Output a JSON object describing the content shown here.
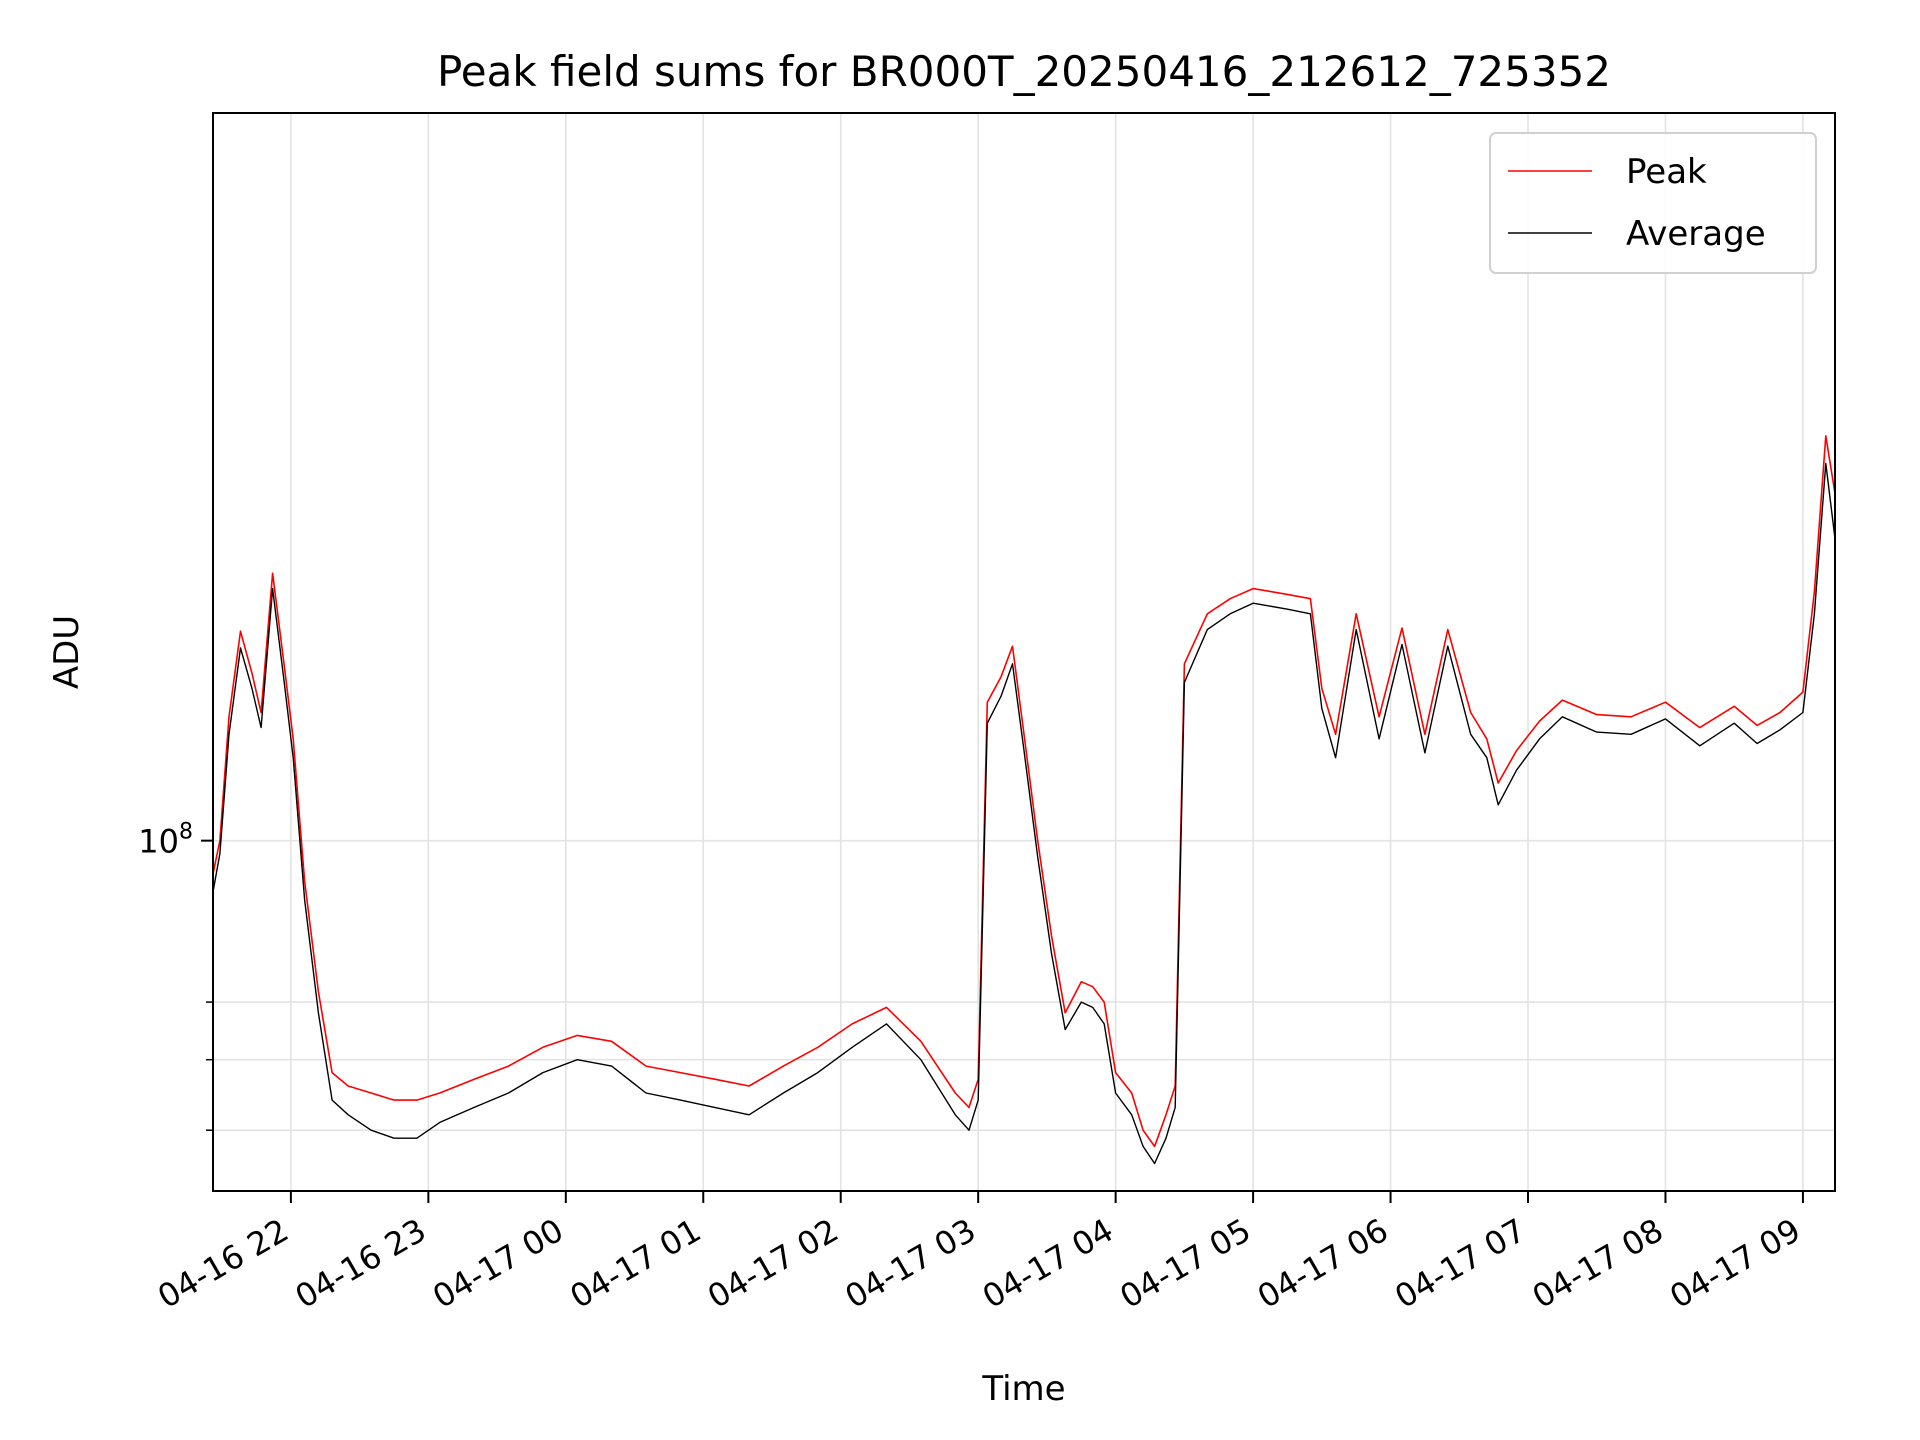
{
  "chart_data": {
    "type": "line",
    "title": "Peak field sums for BR000T_20250416_212612_725352",
    "xlabel": "Time",
    "ylabel": "ADU",
    "y_scale": "log",
    "ylim": [
      33000000,
      1000000000
    ],
    "xlim": [
      "04-16 21:26",
      "04-17 09:14"
    ],
    "x_ticks": [
      "04-16 22",
      "04-16 23",
      "04-17 00",
      "04-17 01",
      "04-17 02",
      "04-17 03",
      "04-17 04",
      "04-17 05",
      "04-17 06",
      "04-17 07",
      "04-17 08",
      "04-17 09"
    ],
    "y_major_tick": {
      "value": 100000000,
      "base": "10",
      "exp": "8"
    },
    "y_minor_ticks": [
      40000000,
      50000000,
      60000000
    ],
    "grid": true,
    "legend_position": "upper right",
    "series": [
      {
        "name": "Peak",
        "color": "#ff0000",
        "x": [
          "04-16 21:26",
          "04-16 21:29",
          "04-16 21:33",
          "04-16 21:38",
          "04-16 21:43",
          "04-16 21:47",
          "04-16 21:52",
          "04-16 21:57",
          "04-16 22:01",
          "04-16 22:06",
          "04-16 22:12",
          "04-16 22:18",
          "04-16 22:25",
          "04-16 22:35",
          "04-16 22:45",
          "04-16 22:55",
          "04-16 23:05",
          "04-16 23:20",
          "04-16 23:35",
          "04-16 23:50",
          "04-17 00:05",
          "04-17 00:20",
          "04-17 00:35",
          "04-17 00:50",
          "04-17 01:05",
          "04-17 01:20",
          "04-17 01:35",
          "04-17 01:50",
          "04-17 02:05",
          "04-17 02:20",
          "04-17 02:35",
          "04-17 02:50",
          "04-17 02:56",
          "04-17 03:00",
          "04-17 03:04",
          "04-17 03:10",
          "04-17 03:15",
          "04-17 03:20",
          "04-17 03:26",
          "04-17 03:32",
          "04-17 03:38",
          "04-17 03:45",
          "04-17 03:50",
          "04-17 03:55",
          "04-17 04:00",
          "04-17 04:07",
          "04-17 04:12",
          "04-17 04:17",
          "04-17 04:22",
          "04-17 04:26",
          "04-17 04:30",
          "04-17 04:40",
          "04-17 04:50",
          "04-17 05:00",
          "04-17 05:15",
          "04-17 05:25",
          "04-17 05:30",
          "04-17 05:36",
          "04-17 05:45",
          "04-17 05:55",
          "04-17 06:05",
          "04-17 06:15",
          "04-17 06:25",
          "04-17 06:35",
          "04-17 06:42",
          "04-17 06:47",
          "04-17 06:55",
          "04-17 07:05",
          "04-17 07:15",
          "04-17 07:30",
          "04-17 07:45",
          "04-17 08:00",
          "04-17 08:15",
          "04-17 08:30",
          "04-17 08:40",
          "04-17 08:50",
          "04-17 09:00",
          "04-17 09:05",
          "04-17 09:10",
          "04-17 09:14"
        ],
        "values": [
          90000000,
          100000000,
          148000000,
          194000000,
          170000000,
          150000000,
          233000000,
          175000000,
          138000000,
          88000000,
          62000000,
          48000000,
          46000000,
          45000000,
          44000000,
          44000000,
          45000000,
          47000000,
          49000000,
          52000000,
          54000000,
          53000000,
          49000000,
          48000000,
          47000000,
          46000000,
          49000000,
          52000000,
          56000000,
          59000000,
          53000000,
          45000000,
          43000000,
          47000000,
          155000000,
          168000000,
          185000000,
          140000000,
          100000000,
          74000000,
          58000000,
          64000000,
          63000000,
          60000000,
          48000000,
          45000000,
          40000000,
          38000000,
          42000000,
          46000000,
          175000000,
          205000000,
          215000000,
          222000000,
          218000000,
          215000000,
          162000000,
          140000000,
          205000000,
          148000000,
          196000000,
          140000000,
          195000000,
          150000000,
          138000000,
          120000000,
          133000000,
          146000000,
          156000000,
          149000000,
          148000000,
          155000000,
          143000000,
          153000000,
          144000000,
          150000000,
          160000000,
          220000000,
          360000000,
          300000000
        ]
      },
      {
        "name": "Average",
        "color": "#000000",
        "x": [
          "04-16 21:26",
          "04-16 21:29",
          "04-16 21:33",
          "04-16 21:38",
          "04-16 21:43",
          "04-16 21:47",
          "04-16 21:52",
          "04-16 21:57",
          "04-16 22:01",
          "04-16 22:06",
          "04-16 22:12",
          "04-16 22:18",
          "04-16 22:25",
          "04-16 22:35",
          "04-16 22:45",
          "04-16 22:55",
          "04-16 23:05",
          "04-16 23:20",
          "04-16 23:35",
          "04-16 23:50",
          "04-17 00:05",
          "04-17 00:20",
          "04-17 00:35",
          "04-17 00:50",
          "04-17 01:05",
          "04-17 01:20",
          "04-17 01:35",
          "04-17 01:50",
          "04-17 02:05",
          "04-17 02:20",
          "04-17 02:35",
          "04-17 02:50",
          "04-17 02:56",
          "04-17 03:00",
          "04-17 03:04",
          "04-17 03:10",
          "04-17 03:15",
          "04-17 03:20",
          "04-17 03:26",
          "04-17 03:32",
          "04-17 03:38",
          "04-17 03:45",
          "04-17 03:50",
          "04-17 03:55",
          "04-17 04:00",
          "04-17 04:07",
          "04-17 04:12",
          "04-17 04:17",
          "04-17 04:22",
          "04-17 04:26",
          "04-17 04:30",
          "04-17 04:40",
          "04-17 04:50",
          "04-17 05:00",
          "04-17 05:15",
          "04-17 05:25",
          "04-17 05:30",
          "04-17 05:36",
          "04-17 05:45",
          "04-17 05:55",
          "04-17 06:05",
          "04-17 06:15",
          "04-17 06:25",
          "04-17 06:35",
          "04-17 06:42",
          "04-17 06:47",
          "04-17 06:55",
          "04-17 07:05",
          "04-17 07:15",
          "04-17 07:30",
          "04-17 07:45",
          "04-17 08:00",
          "04-17 08:15",
          "04-17 08:30",
          "04-17 08:40",
          "04-17 08:50",
          "04-17 09:00",
          "04-17 09:05",
          "04-17 09:10",
          "04-17 09:14"
        ],
        "values": [
          85000000,
          96000000,
          140000000,
          184000000,
          162000000,
          143000000,
          222000000,
          166000000,
          130000000,
          83000000,
          58000000,
          44000000,
          42000000,
          40000000,
          39000000,
          39000000,
          41000000,
          43000000,
          45000000,
          48000000,
          50000000,
          49000000,
          45000000,
          44000000,
          43000000,
          42000000,
          45000000,
          48000000,
          52000000,
          56000000,
          50000000,
          42000000,
          40000000,
          44000000,
          145000000,
          158000000,
          175000000,
          133000000,
          95000000,
          70000000,
          55000000,
          60000000,
          59000000,
          56000000,
          45000000,
          42000000,
          38000000,
          36000000,
          39000000,
          43000000,
          165000000,
          195000000,
          205000000,
          212000000,
          208000000,
          205000000,
          152000000,
          130000000,
          195000000,
          138000000,
          186000000,
          132000000,
          185000000,
          140000000,
          130000000,
          112000000,
          125000000,
          138000000,
          148000000,
          141000000,
          140000000,
          147000000,
          135000000,
          145000000,
          136000000,
          142000000,
          150000000,
          205000000,
          330000000,
          260000000
        ]
      }
    ]
  }
}
